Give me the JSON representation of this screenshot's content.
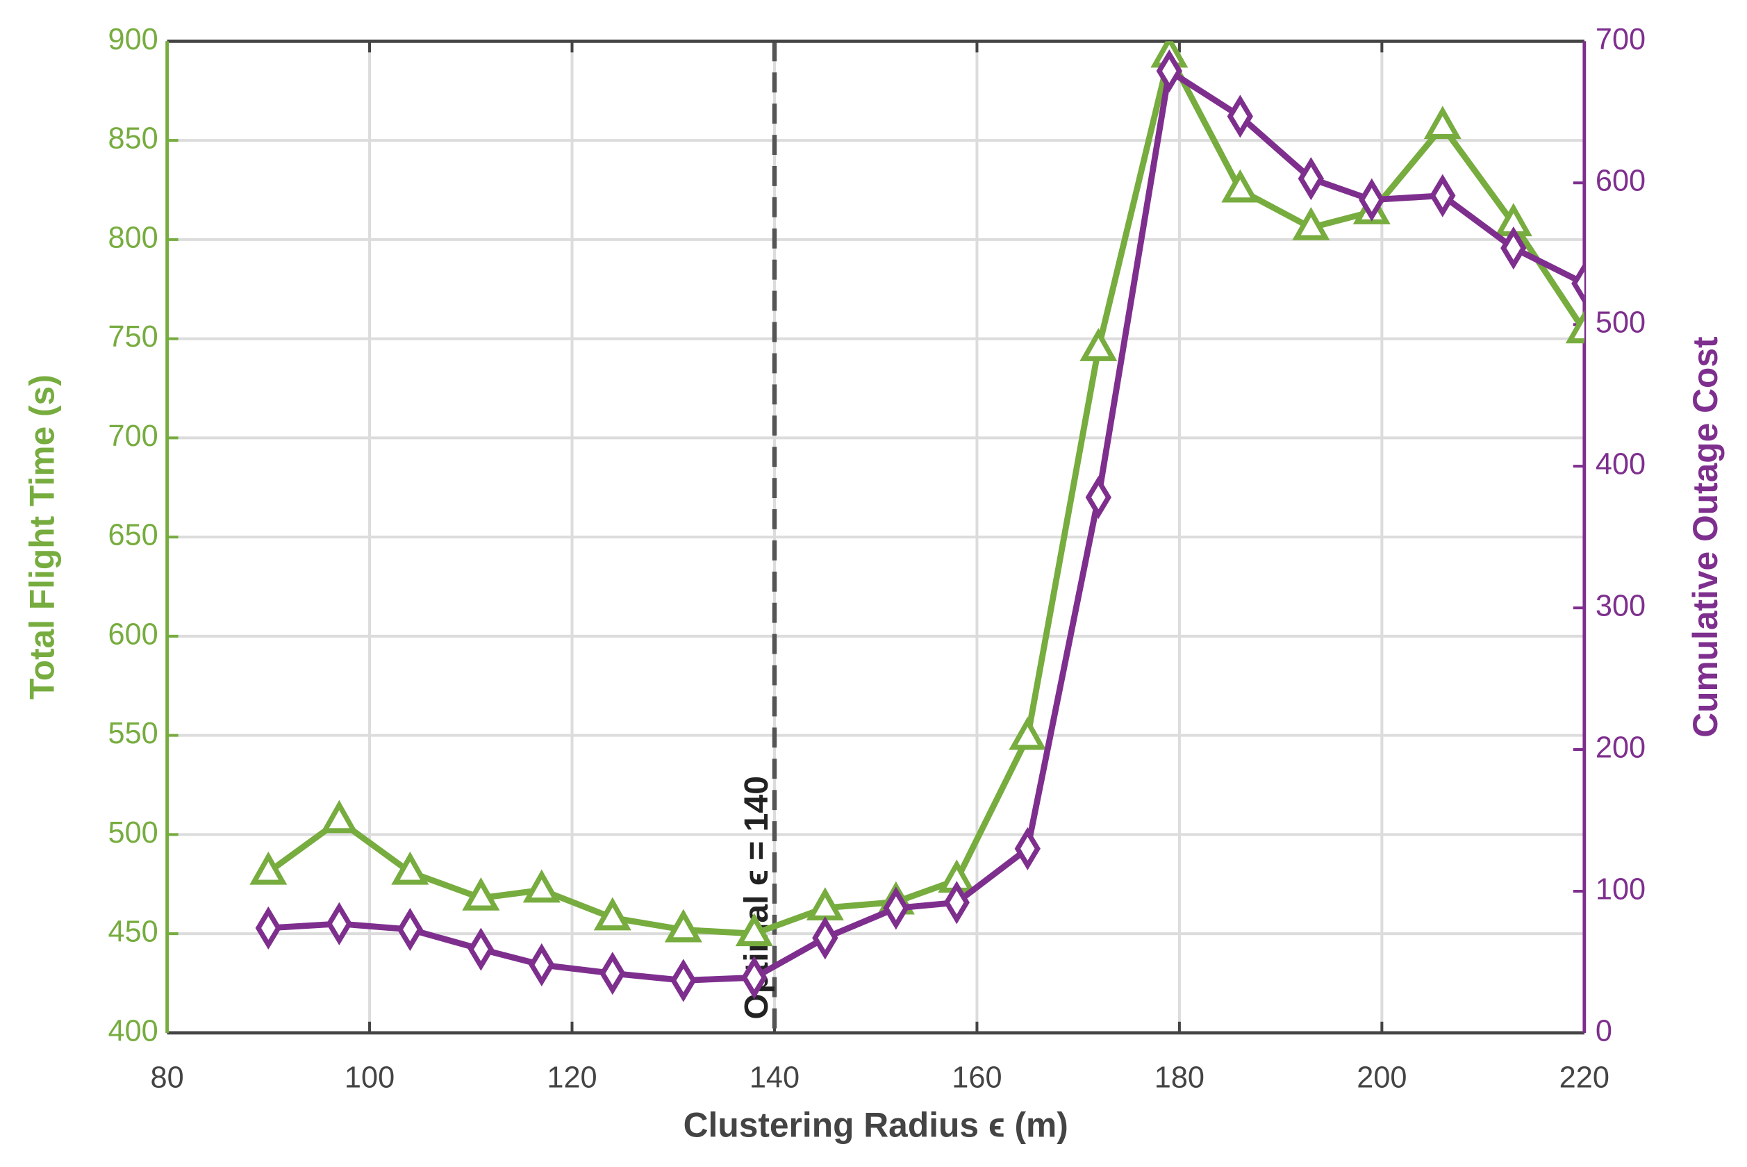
{
  "chart_data": {
    "type": "line",
    "x_label": "Clustering Radius ϵ (m)",
    "y_label": "Total Flight Time (s)",
    "y2_label": "Cumulative Outage Cost",
    "x": [
      90,
      97,
      104,
      111,
      117,
      124,
      131,
      138,
      145,
      152,
      158,
      165,
      172,
      179,
      186,
      193,
      199,
      206,
      213,
      220
    ],
    "series": [
      {
        "color": "#77ac3f",
        "marker": "triangle",
        "values": [
          481,
          507,
          481,
          468,
          472,
          458,
          452,
          450,
          463,
          466,
          477,
          549,
          745,
          893,
          825,
          806,
          814,
          857,
          808,
          754
        ]
      },
      {
        "color": "#7e2f8e",
        "marker": "diamond",
        "axis": "y2",
        "values": [
          74,
          77,
          73,
          59,
          48,
          42,
          37,
          39,
          67,
          88,
          92,
          130,
          378,
          679,
          647,
          603,
          588,
          591,
          554,
          529
        ]
      }
    ],
    "xlim": [
      80,
      220
    ],
    "xticks": [
      80,
      100,
      120,
      140,
      160,
      180,
      200,
      220
    ],
    "ylim": [
      400,
      900
    ],
    "yticks": [
      400,
      450,
      500,
      550,
      600,
      650,
      700,
      750,
      800,
      850,
      900
    ],
    "y2lim": [
      0,
      700
    ],
    "y2ticks": [
      0,
      100,
      200,
      300,
      400,
      500,
      600,
      700
    ],
    "grid": true,
    "annotation": {
      "x": 140,
      "text": "Optimal ϵ = 140"
    }
  }
}
